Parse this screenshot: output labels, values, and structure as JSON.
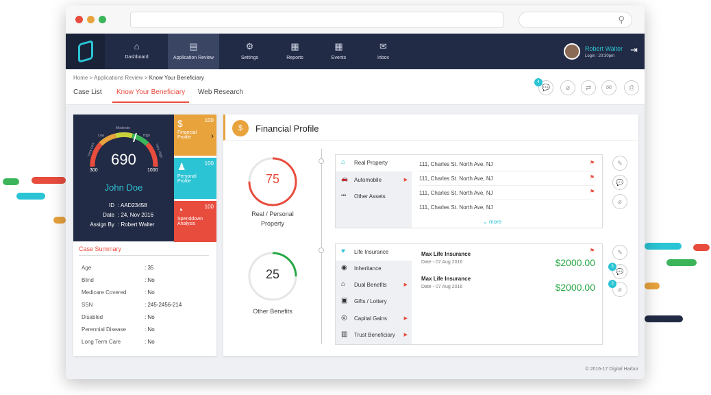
{
  "colors": {
    "accent": "#2bc4d4",
    "red": "#e84c3d",
    "orange": "#e8a33d",
    "green": "#27a844",
    "nav": "#222b45"
  },
  "nav": {
    "items": [
      {
        "label": "Dashboard",
        "icon": "home-icon",
        "glyph": "⌂"
      },
      {
        "label": "Application Review",
        "icon": "clipboard-icon",
        "glyph": "▤"
      },
      {
        "label": "Settings",
        "icon": "gear-icon",
        "glyph": "⚙"
      },
      {
        "label": "Reports",
        "icon": "report-icon",
        "glyph": "▦"
      },
      {
        "label": "Events",
        "icon": "calendar-icon",
        "glyph": "▦"
      },
      {
        "label": "Inbox",
        "icon": "mail-icon",
        "glyph": "✉"
      }
    ],
    "user": {
      "name": "Robert Walter",
      "login": "Login : 20:30pm"
    }
  },
  "breadcrumb": {
    "home": "Home",
    "sep1": ">",
    "app": "Applications Review",
    "sep2": ">",
    "current": "Know Your Beneficiary"
  },
  "tabs": [
    "Case List",
    "Know Your Beneficiary",
    "Web Research"
  ],
  "actions": {
    "badge": "4"
  },
  "gauge": {
    "score": "690",
    "min": "300",
    "max": "1000",
    "ticks": [
      "Very Low",
      "Low",
      "Moderate",
      "High",
      "Very High"
    ],
    "name": "John Doe",
    "fields": [
      {
        "k": "ID",
        "v": ": AAD23458"
      },
      {
        "k": "Date",
        "v": ": 24, Nov 2016"
      },
      {
        "k": "Assign By",
        "v": ": Robert Walter"
      }
    ]
  },
  "sidecards": [
    {
      "num": "100",
      "line1": "Financial",
      "line2": "Profile",
      "color": "#e8a33d",
      "glyph": "$"
    },
    {
      "num": "100",
      "line1": "Personal",
      "line2": "Profile",
      "color": "#2bc4d4",
      "glyph": "♟"
    },
    {
      "num": "100",
      "line1": "Spenddown",
      "line2": "Analysis",
      "color": "#e84c3d",
      "glyph": "◔"
    }
  ],
  "case_summary": {
    "title": "Case Summary",
    "rows": [
      {
        "k": "Age",
        "v": ": 35"
      },
      {
        "k": "Blind",
        "v": ": No"
      },
      {
        "k": "Medicare Covered",
        "v": ": No"
      },
      {
        "k": "SSN",
        "v": ": 245-2456-214"
      },
      {
        "k": "Disabled",
        "v": ": No"
      },
      {
        "k": "Perennial Disease",
        "v": ": No"
      },
      {
        "k": "Long Term Care",
        "v": ": No"
      }
    ]
  },
  "financial": {
    "title": "Financial Profile",
    "ring1": {
      "value": "75",
      "pct": 75,
      "color": "#e84c3d",
      "label1": "Real / Personal",
      "label2": "Property"
    },
    "ring2": {
      "value": "25",
      "pct": 25,
      "color": "#27a844",
      "label1": "Other Benefits",
      "label2": ""
    },
    "card1": {
      "items": [
        {
          "label": "Real Property",
          "glyph": "⌂"
        },
        {
          "label": "Automobile",
          "glyph": "🚗"
        },
        {
          "label": "Other Assets",
          "glyph": "•••"
        }
      ],
      "addresses": [
        "111, Charles St. North Ave, NJ",
        "111, Charles St. North Ave, NJ",
        "111, Charles St. North Ave, NJ",
        "111, Charles St. North Ave, NJ"
      ],
      "more": "more"
    },
    "card2": {
      "items": [
        {
          "label": "Life Insurance",
          "glyph": "♥"
        },
        {
          "label": "Inheritance",
          "glyph": "◉"
        },
        {
          "label": "Dual Benefits",
          "glyph": "⌂"
        },
        {
          "label": "Gifts / Lottery",
          "glyph": "▣"
        },
        {
          "label": "Capital Gains",
          "glyph": "◎"
        },
        {
          "label": "Trust Beneficiary",
          "glyph": "▥"
        }
      ],
      "policies": [
        {
          "name": "Max Life Insurance",
          "date": "Date -  07 Aug 2016",
          "amount": "$2000.00"
        },
        {
          "name": "Max Life Insurance",
          "date": "Date -  07 Aug 2016",
          "amount": "$2000.00"
        }
      ]
    },
    "badges": [
      "3",
      "3"
    ]
  },
  "footer": "© 2016-17  Digital Harbor"
}
